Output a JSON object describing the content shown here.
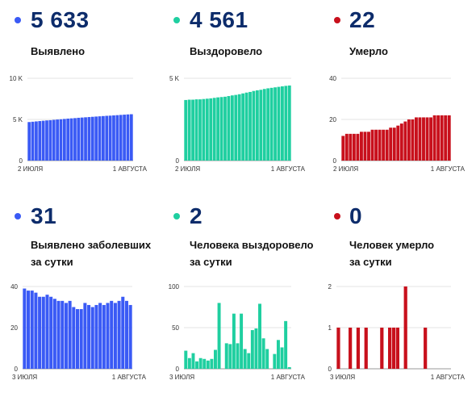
{
  "colors": {
    "detected": "#3a5af5",
    "recovered": "#1fcfa0",
    "died": "#c8101c",
    "headline": "#0d2c6b"
  },
  "panels": [
    {
      "big": "5 633",
      "label_line1": "Выявлено",
      "label_line2": "",
      "color_key": "detected",
      "icon": "blue-dot-icon"
    },
    {
      "big": "4 561",
      "label_line1": "Выздоровело",
      "label_line2": "",
      "color_key": "recovered",
      "icon": "green-dot-icon"
    },
    {
      "big": "22",
      "label_line1": "Умерло",
      "label_line2": "",
      "color_key": "died",
      "icon": "red-dot-icon"
    },
    {
      "big": "31",
      "label_line1": "Выявлено заболевших",
      "label_line2": "за сутки",
      "color_key": "detected",
      "icon": "blue-dot-icon"
    },
    {
      "big": "2",
      "label_line1": "Человека выздоровело",
      "label_line2": "за сутки",
      "color_key": "recovered",
      "icon": "green-dot-icon"
    },
    {
      "big": "0",
      "label_line1": "Человек умерло",
      "label_line2": "за сутки",
      "color_key": "died",
      "icon": "red-dot-icon"
    }
  ],
  "chart_data": [
    {
      "type": "bar",
      "title": "Выявлено",
      "color": "#3a5af5",
      "ylim": [
        0,
        10000
      ],
      "ytick_values": [
        0,
        5000,
        10000
      ],
      "ytick_labels": [
        "0",
        "5 K",
        "10 K"
      ],
      "x_start_label": "2 ИЮЛЯ",
      "x_end_label": "1 АВГУСТА",
      "values": [
        4680,
        4720,
        4760,
        4800,
        4840,
        4880,
        4910,
        4950,
        4990,
        5020,
        5060,
        5100,
        5130,
        5160,
        5200,
        5230,
        5260,
        5290,
        5320,
        5350,
        5380,
        5410,
        5440,
        5460,
        5490,
        5520,
        5550,
        5580,
        5610,
        5633
      ]
    },
    {
      "type": "bar",
      "title": "Выздоровело",
      "color": "#1fcfa0",
      "ylim": [
        0,
        5000
      ],
      "ytick_values": [
        0,
        5000
      ],
      "ytick_labels": [
        "0",
        "5 K"
      ],
      "x_start_label": "2 ИЮЛЯ",
      "x_end_label": "1 АВГУСТА",
      "values": [
        3680,
        3700,
        3700,
        3720,
        3720,
        3740,
        3760,
        3780,
        3810,
        3840,
        3860,
        3880,
        3920,
        3960,
        3990,
        4030,
        4080,
        4130,
        4170,
        4230,
        4270,
        4300,
        4350,
        4390,
        4420,
        4450,
        4480,
        4510,
        4540,
        4561
      ]
    },
    {
      "type": "bar",
      "title": "Умерло",
      "color": "#c8101c",
      "ylim": [
        0,
        40
      ],
      "ytick_values": [
        0,
        20,
        40
      ],
      "ytick_labels": [
        "0",
        "20",
        "40"
      ],
      "x_start_label": "2 ИЮЛЯ",
      "x_end_label": "1 АВГУСТА",
      "values": [
        12,
        13,
        13,
        13,
        13,
        14,
        14,
        14,
        15,
        15,
        15,
        15,
        15,
        16,
        16,
        17,
        18,
        19,
        20,
        20,
        21,
        21,
        21,
        21,
        21,
        22,
        22,
        22,
        22,
        22
      ]
    },
    {
      "type": "bar",
      "title": "Выявлено заболевших за сутки",
      "color": "#3a5af5",
      "ylim": [
        0,
        40
      ],
      "ytick_values": [
        0,
        20,
        40
      ],
      "ytick_labels": [
        "0",
        "20",
        "40"
      ],
      "x_start_label": "3 ИЮЛЯ",
      "x_end_label": "1 АВГУСТА",
      "values": [
        39,
        38,
        38,
        37,
        35,
        35,
        36,
        35,
        34,
        33,
        33,
        32,
        33,
        30,
        29,
        29,
        32,
        31,
        30,
        31,
        32,
        31,
        32,
        33,
        32,
        33,
        35,
        33,
        31
      ]
    },
    {
      "type": "bar",
      "title": "Человека выздоровело за сутки",
      "color": "#1fcfa0",
      "ylim": [
        0,
        100
      ],
      "ytick_values": [
        0,
        50,
        100
      ],
      "ytick_labels": [
        "0",
        "50",
        "100"
      ],
      "x_start_label": "3 ИЮЛЯ",
      "x_end_label": "1 АВГУСТА",
      "values": [
        22,
        13,
        19,
        9,
        13,
        12,
        10,
        12,
        23,
        80,
        0,
        31,
        30,
        67,
        31,
        67,
        24,
        19,
        47,
        49,
        79,
        37,
        24,
        0,
        18,
        35,
        26,
        58,
        2
      ]
    },
    {
      "type": "bar",
      "title": "Человек умерло за сутки",
      "color": "#c8101c",
      "ylim": [
        0,
        2
      ],
      "ytick_values": [
        0,
        1,
        2
      ],
      "ytick_labels": [
        "0",
        "1",
        "2"
      ],
      "x_start_label": "3 ИЮЛЯ",
      "x_end_label": "1 АВГУСТА",
      "values": [
        1,
        0,
        0,
        1,
        0,
        1,
        0,
        1,
        0,
        0,
        0,
        1,
        0,
        1,
        1,
        1,
        0,
        2,
        0,
        0,
        0,
        0,
        1,
        0,
        0,
        0,
        0,
        0,
        0
      ]
    }
  ]
}
